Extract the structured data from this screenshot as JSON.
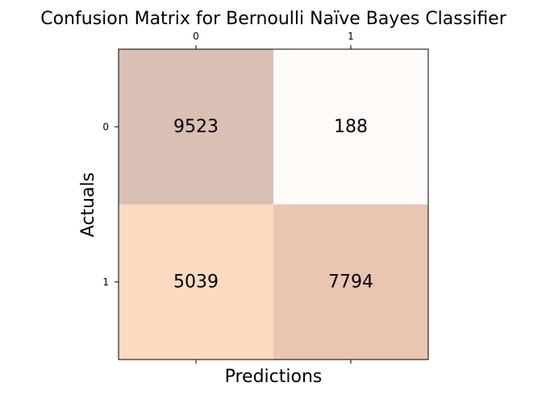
{
  "chart_data": {
    "type": "heatmap",
    "title": "Confusion Matrix for Bernoulli Naïve Bayes Classifier",
    "xlabel": "Predictions",
    "ylabel": "Actuals",
    "x_categories": [
      "0",
      "1"
    ],
    "y_categories": [
      "0",
      "1"
    ],
    "values": [
      [
        9523,
        188
      ],
      [
        5039,
        7794
      ]
    ],
    "x_ticks_position": "top",
    "grid": false,
    "colors": {
      "cell_0_0": "#d9bfb4",
      "cell_0_1": "#fffbf9",
      "cell_1_0": "#fcdac1",
      "cell_1_1": "#e9c5b2"
    }
  }
}
